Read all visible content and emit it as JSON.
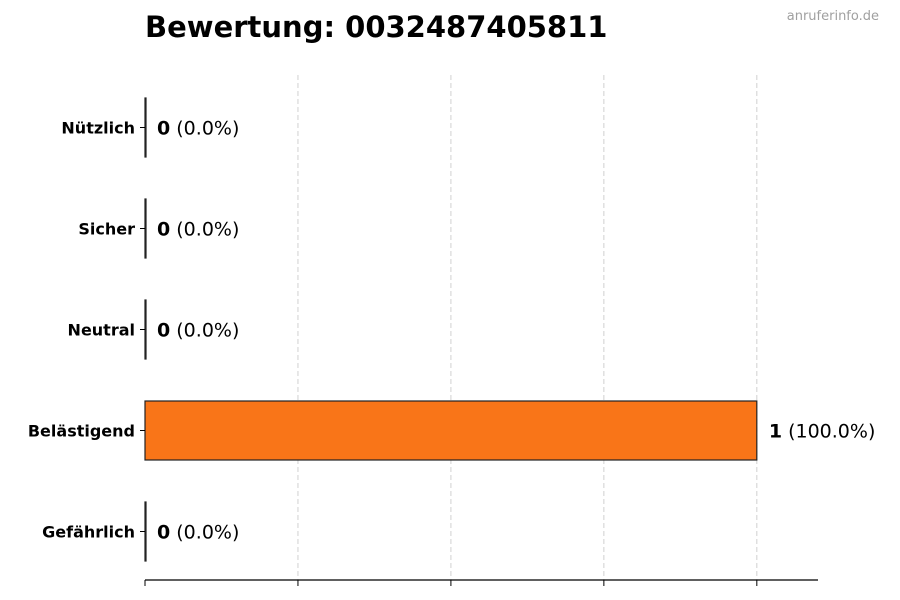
{
  "title": "Bewertung: 0032487405811",
  "watermark": "anruferinfo.de",
  "chart_data": {
    "type": "bar",
    "orientation": "horizontal",
    "categories": [
      "Nützlich",
      "Sicher",
      "Neutral",
      "Belästigend",
      "Gefährlich"
    ],
    "values": [
      0,
      0,
      0,
      1,
      0
    ],
    "percent_labels": [
      "(0.0%)",
      "(0.0%)",
      "(0.0%)",
      "(100.0%)",
      "(0.0%)"
    ],
    "xlim": [
      0,
      1.1
    ],
    "xticks": [
      0,
      0.25,
      0.5,
      0.75,
      1.0
    ],
    "xtick_labels_shown": false,
    "grid": "vertical dashed",
    "colors": {
      "bar": "#f97518",
      "edge": "#222222",
      "grid": "#d0d0d0"
    }
  }
}
